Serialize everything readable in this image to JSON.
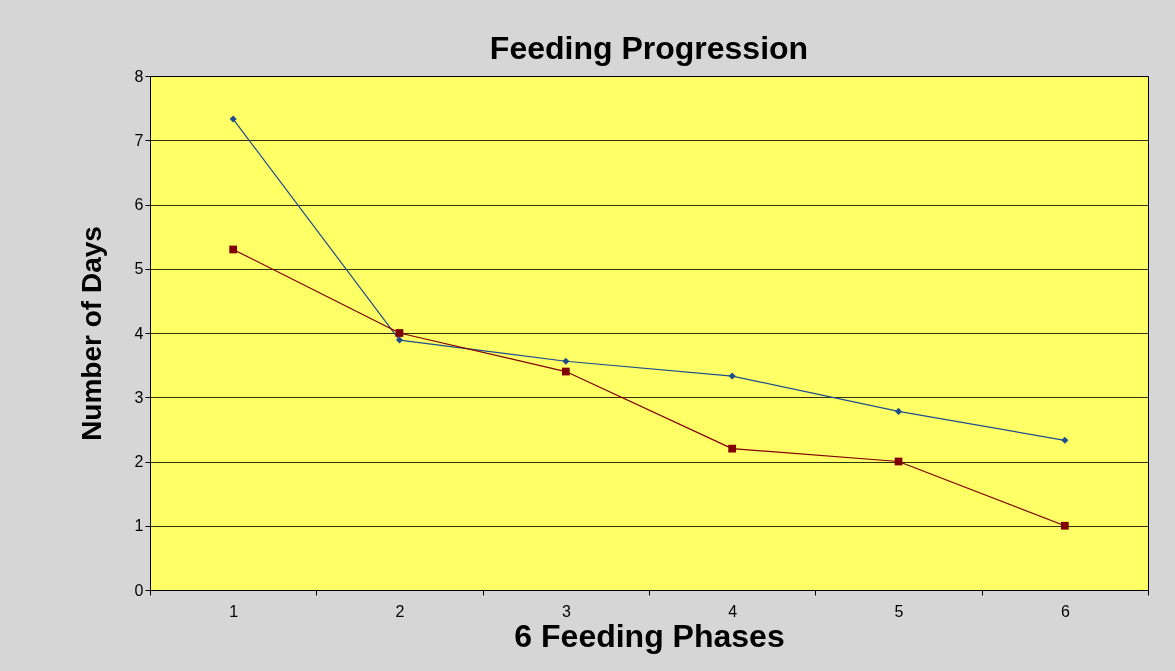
{
  "chart_data": {
    "type": "line",
    "title": "Feeding Progression",
    "xlabel": "6 Feeding Phases",
    "ylabel": "Number of Days",
    "categories": [
      "1",
      "2",
      "3",
      "4",
      "5",
      "6"
    ],
    "series": [
      {
        "color": "#1f4e8c",
        "marker": "diamond",
        "values": [
          7.33,
          3.89,
          3.56,
          3.33,
          2.78,
          2.33
        ]
      },
      {
        "color": "#800000",
        "marker": "square",
        "values": [
          5.3,
          4.0,
          3.4,
          2.2,
          2.0,
          1.0
        ]
      }
    ],
    "ylim": [
      0,
      8
    ],
    "yticks": [
      0,
      1,
      2,
      3,
      4,
      5,
      6,
      7,
      8
    ],
    "grid": "y"
  }
}
